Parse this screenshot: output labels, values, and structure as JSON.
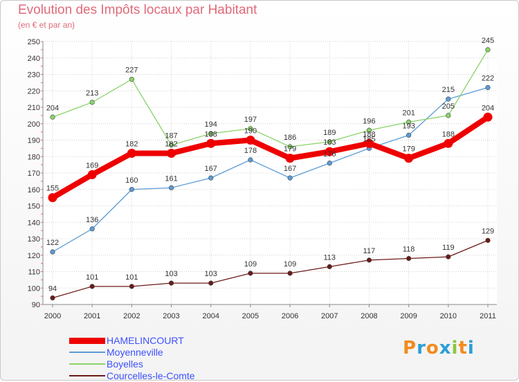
{
  "chart_data": {
    "type": "line",
    "title": "Evolution des Impôts locaux par Habitant",
    "subtitle": "(en € et par an)",
    "xlabel": "",
    "ylabel": "",
    "x": [
      "2000",
      "2001",
      "2002",
      "2003",
      "2004",
      "2005",
      "2006",
      "2007",
      "2008",
      "2009",
      "2010",
      "2011"
    ],
    "ylim": [
      90,
      250
    ],
    "yticks": [
      "90",
      "100",
      "110",
      "120",
      "130",
      "140",
      "150",
      "160",
      "170",
      "180",
      "190",
      "200",
      "210",
      "220",
      "230",
      "240",
      "250"
    ],
    "grid": true,
    "series": [
      {
        "name": "HAMELINCOURT",
        "color": "#ee0000",
        "values": [
          155,
          169,
          182,
          182,
          188,
          190,
          179,
          183,
          188,
          179,
          188,
          204
        ]
      },
      {
        "name": "Moyenneville",
        "color": "#5b9bd5",
        "values": [
          122,
          136,
          160,
          161,
          167,
          178,
          167,
          176,
          185,
          193,
          215,
          222
        ]
      },
      {
        "name": "Boyelles",
        "color": "#88d468",
        "values": [
          204,
          213,
          227,
          187,
          194,
          197,
          186,
          189,
          196,
          201,
          205,
          245
        ]
      },
      {
        "name": "Courcelles-le-Comte",
        "color": "#6b1a1a",
        "values": [
          94,
          101,
          101,
          103,
          103,
          109,
          109,
          113,
          117,
          118,
          119,
          129
        ]
      }
    ]
  },
  "logo": {
    "letters": [
      "P",
      "r",
      "o",
      "x",
      "i",
      "t",
      "i"
    ],
    "colors": [
      "#f28b1e",
      "#2a9fd6",
      "#f28b1e",
      "#2a9fd6",
      "#8cc63f",
      "#f28b1e",
      "#2a9fd6"
    ]
  }
}
